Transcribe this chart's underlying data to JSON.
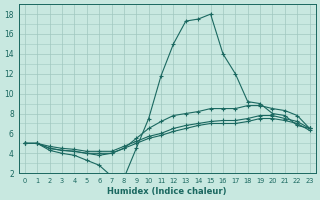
{
  "xlabel": "Humidex (Indice chaleur)",
  "bg_color": "#c8e8e0",
  "grid_color": "#a0c8c0",
  "line_color": "#1a6860",
  "xlim": [
    -0.5,
    23.5
  ],
  "ylim": [
    2,
    19
  ],
  "xticks": [
    0,
    1,
    2,
    3,
    4,
    5,
    6,
    7,
    8,
    9,
    10,
    11,
    12,
    13,
    14,
    15,
    16,
    17,
    18,
    19,
    20,
    21,
    22,
    23
  ],
  "yticks": [
    2,
    4,
    6,
    8,
    10,
    12,
    14,
    16,
    18
  ],
  "lines": [
    [
      5.0,
      5.0,
      4.3,
      4.0,
      3.8,
      3.3,
      2.8,
      1.7,
      1.5,
      4.5,
      7.5,
      11.8,
      15.0,
      17.3,
      17.5,
      18.0,
      14.0,
      12.0,
      9.2,
      9.0,
      8.0,
      7.8,
      6.8,
      6.5
    ],
    [
      5.0,
      5.0,
      4.5,
      4.3,
      4.2,
      4.0,
      4.0,
      4.0,
      4.5,
      5.5,
      6.5,
      7.2,
      7.8,
      8.0,
      8.2,
      8.5,
      8.5,
      8.5,
      8.8,
      8.8,
      8.5,
      8.3,
      7.8,
      6.5
    ],
    [
      5.0,
      5.0,
      4.5,
      4.3,
      4.2,
      4.0,
      3.8,
      4.0,
      4.5,
      5.0,
      5.5,
      5.8,
      6.2,
      6.5,
      6.8,
      7.0,
      7.0,
      7.0,
      7.2,
      7.5,
      7.5,
      7.3,
      7.0,
      6.3
    ],
    [
      5.0,
      5.0,
      4.7,
      4.5,
      4.4,
      4.2,
      4.2,
      4.2,
      4.7,
      5.2,
      5.7,
      6.0,
      6.5,
      6.8,
      7.0,
      7.2,
      7.3,
      7.3,
      7.5,
      7.8,
      7.8,
      7.5,
      7.2,
      6.5
    ]
  ]
}
